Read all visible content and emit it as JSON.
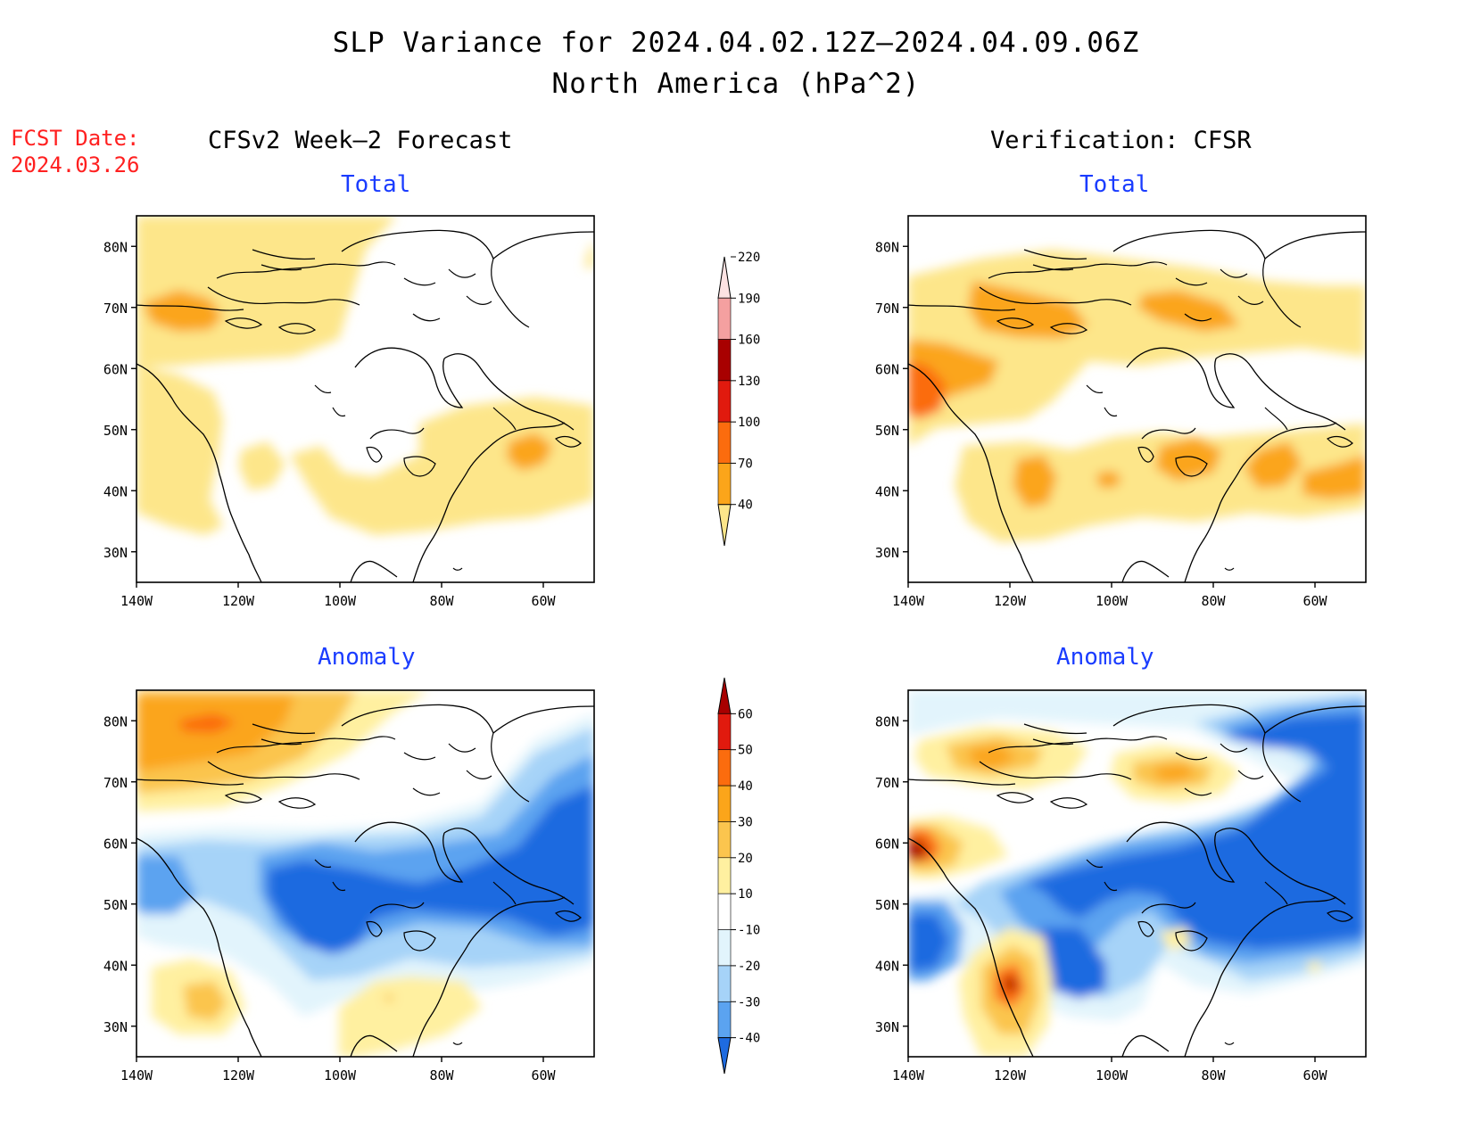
{
  "title": "SLP Variance for 2024.04.02.12Z–2024.04.09.06Z",
  "subtitle": "North America (hPa^2)",
  "fcst_date_label": "FCST Date:",
  "fcst_date_value": "2024.03.26",
  "left_column_title": "CFSv2 Week–2 Forecast",
  "right_column_title": "Verification: CFSR",
  "panels": {
    "forecast_total": {
      "title": "Total"
    },
    "verification_total": {
      "title": "Total"
    },
    "forecast_anomaly": {
      "title": "Anomaly"
    },
    "verification_anomaly": {
      "title": "Anomaly"
    }
  },
  "map": {
    "lat_labels": [
      "30N",
      "40N",
      "50N",
      "60N",
      "70N",
      "80N"
    ],
    "lat_values": [
      30,
      40,
      50,
      60,
      70,
      80
    ],
    "lon_labels": [
      "140W",
      "120W",
      "100W",
      "80W",
      "60W"
    ],
    "lon_values": [
      -140,
      -120,
      -100,
      -80,
      -60
    ],
    "lat_range": [
      25,
      85
    ],
    "lon_range": [
      -140,
      -50
    ]
  },
  "total_colorbar": {
    "levels": [
      "40",
      "70",
      "100",
      "130",
      "160",
      "190",
      "220"
    ],
    "colors": [
      "#fde68a",
      "#fba51a",
      "#fb6c0e",
      "#e11a0e",
      "#a80000",
      "#f4a0a0",
      "#fde2e2"
    ]
  },
  "anomaly_colorbar": {
    "levels": [
      "-40",
      "-30",
      "-20",
      "-10",
      "10",
      "20",
      "30",
      "40",
      "50",
      "60"
    ],
    "colors": [
      "#1e6be0",
      "#5ba3f0",
      "#a6d3f8",
      "#e2f4fc",
      "#ffffff",
      "#fff0a0",
      "#fbc54e",
      "#fba51a",
      "#fb6c0e",
      "#e11a0e",
      "#a80000"
    ]
  },
  "colors": {
    "title_text": "#000000",
    "fcst_text": "#ff2020",
    "panel_title_text": "#1a3cff"
  }
}
